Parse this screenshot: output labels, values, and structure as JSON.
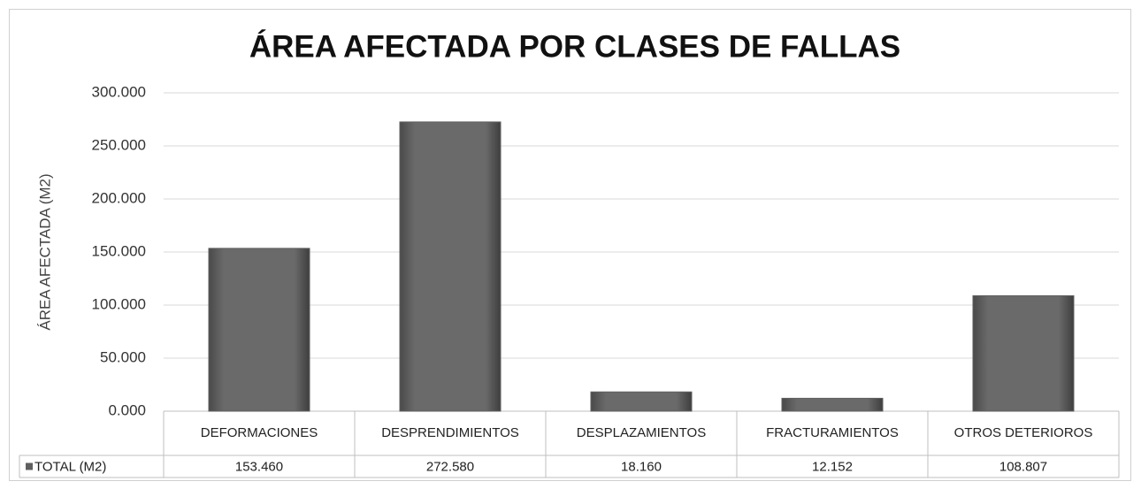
{
  "chart_data": {
    "type": "bar",
    "title": "ÁREA AFECTADA POR CLASES DE FALLAS",
    "y_label": "ÁREA AFECTADA (M2)",
    "categories": [
      "DEFORMACIONES",
      "DESPRENDIMIENTOS",
      "DESPLAZAMIENTOS",
      "FRACTURAMIENTOS",
      "OTROS DETERIOROS"
    ],
    "series": [
      {
        "name": "TOTAL (M2)",
        "color": "#5f5f5f",
        "values": [
          153460,
          272580,
          18160,
          12152,
          108807
        ],
        "value_labels": [
          "153.460",
          "272.580",
          "18.160",
          "12.152",
          "108.807"
        ]
      }
    ],
    "ylim": [
      0,
      300000
    ],
    "yticks": [
      {
        "value": 0,
        "label": "0.000"
      },
      {
        "value": 50000,
        "label": "50.000"
      },
      {
        "value": 100000,
        "label": "100.000"
      },
      {
        "value": 150000,
        "label": "150.000"
      },
      {
        "value": 200000,
        "label": "200.000"
      },
      {
        "value": 250000,
        "label": "250.000"
      },
      {
        "value": 300000,
        "label": "300.000"
      }
    ],
    "grid": true
  }
}
